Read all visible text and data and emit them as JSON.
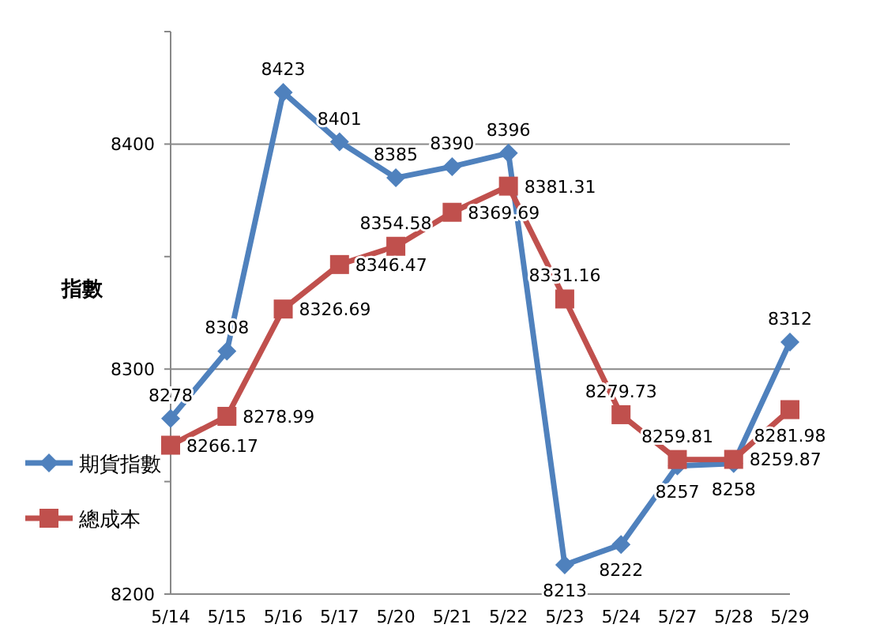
{
  "chart_data": {
    "type": "line",
    "ylabel": "指數",
    "categories": [
      "5/14",
      "5/15",
      "5/16",
      "5/17",
      "5/20",
      "5/21",
      "5/22",
      "5/23",
      "5/24",
      "5/27",
      "5/28",
      "5/29"
    ],
    "series": [
      {
        "name": "期貨指數",
        "color": "#4f81bd",
        "marker": "diamond",
        "values": [
          8278,
          8308,
          8423,
          8401,
          8385,
          8390,
          8396,
          8213,
          8222,
          8257,
          8258,
          8312
        ]
      },
      {
        "name": "總成本",
        "color": "#c0504d",
        "marker": "square",
        "values": [
          8266.17,
          8278.99,
          8326.69,
          8346.47,
          8354.58,
          8369.69,
          8381.31,
          8331.16,
          8279.73,
          8259.81,
          8259.87,
          8281.98
        ]
      }
    ],
    "ylim": [
      8200,
      8450
    ],
    "yticks": [
      8200,
      {
        "value": 8250,
        "label": null
      },
      8300,
      {
        "value": 8350,
        "label": null
      },
      8400,
      {
        "value": 8450,
        "label": null
      }
    ],
    "grid": "y",
    "legend": "left",
    "data_labels": true
  }
}
